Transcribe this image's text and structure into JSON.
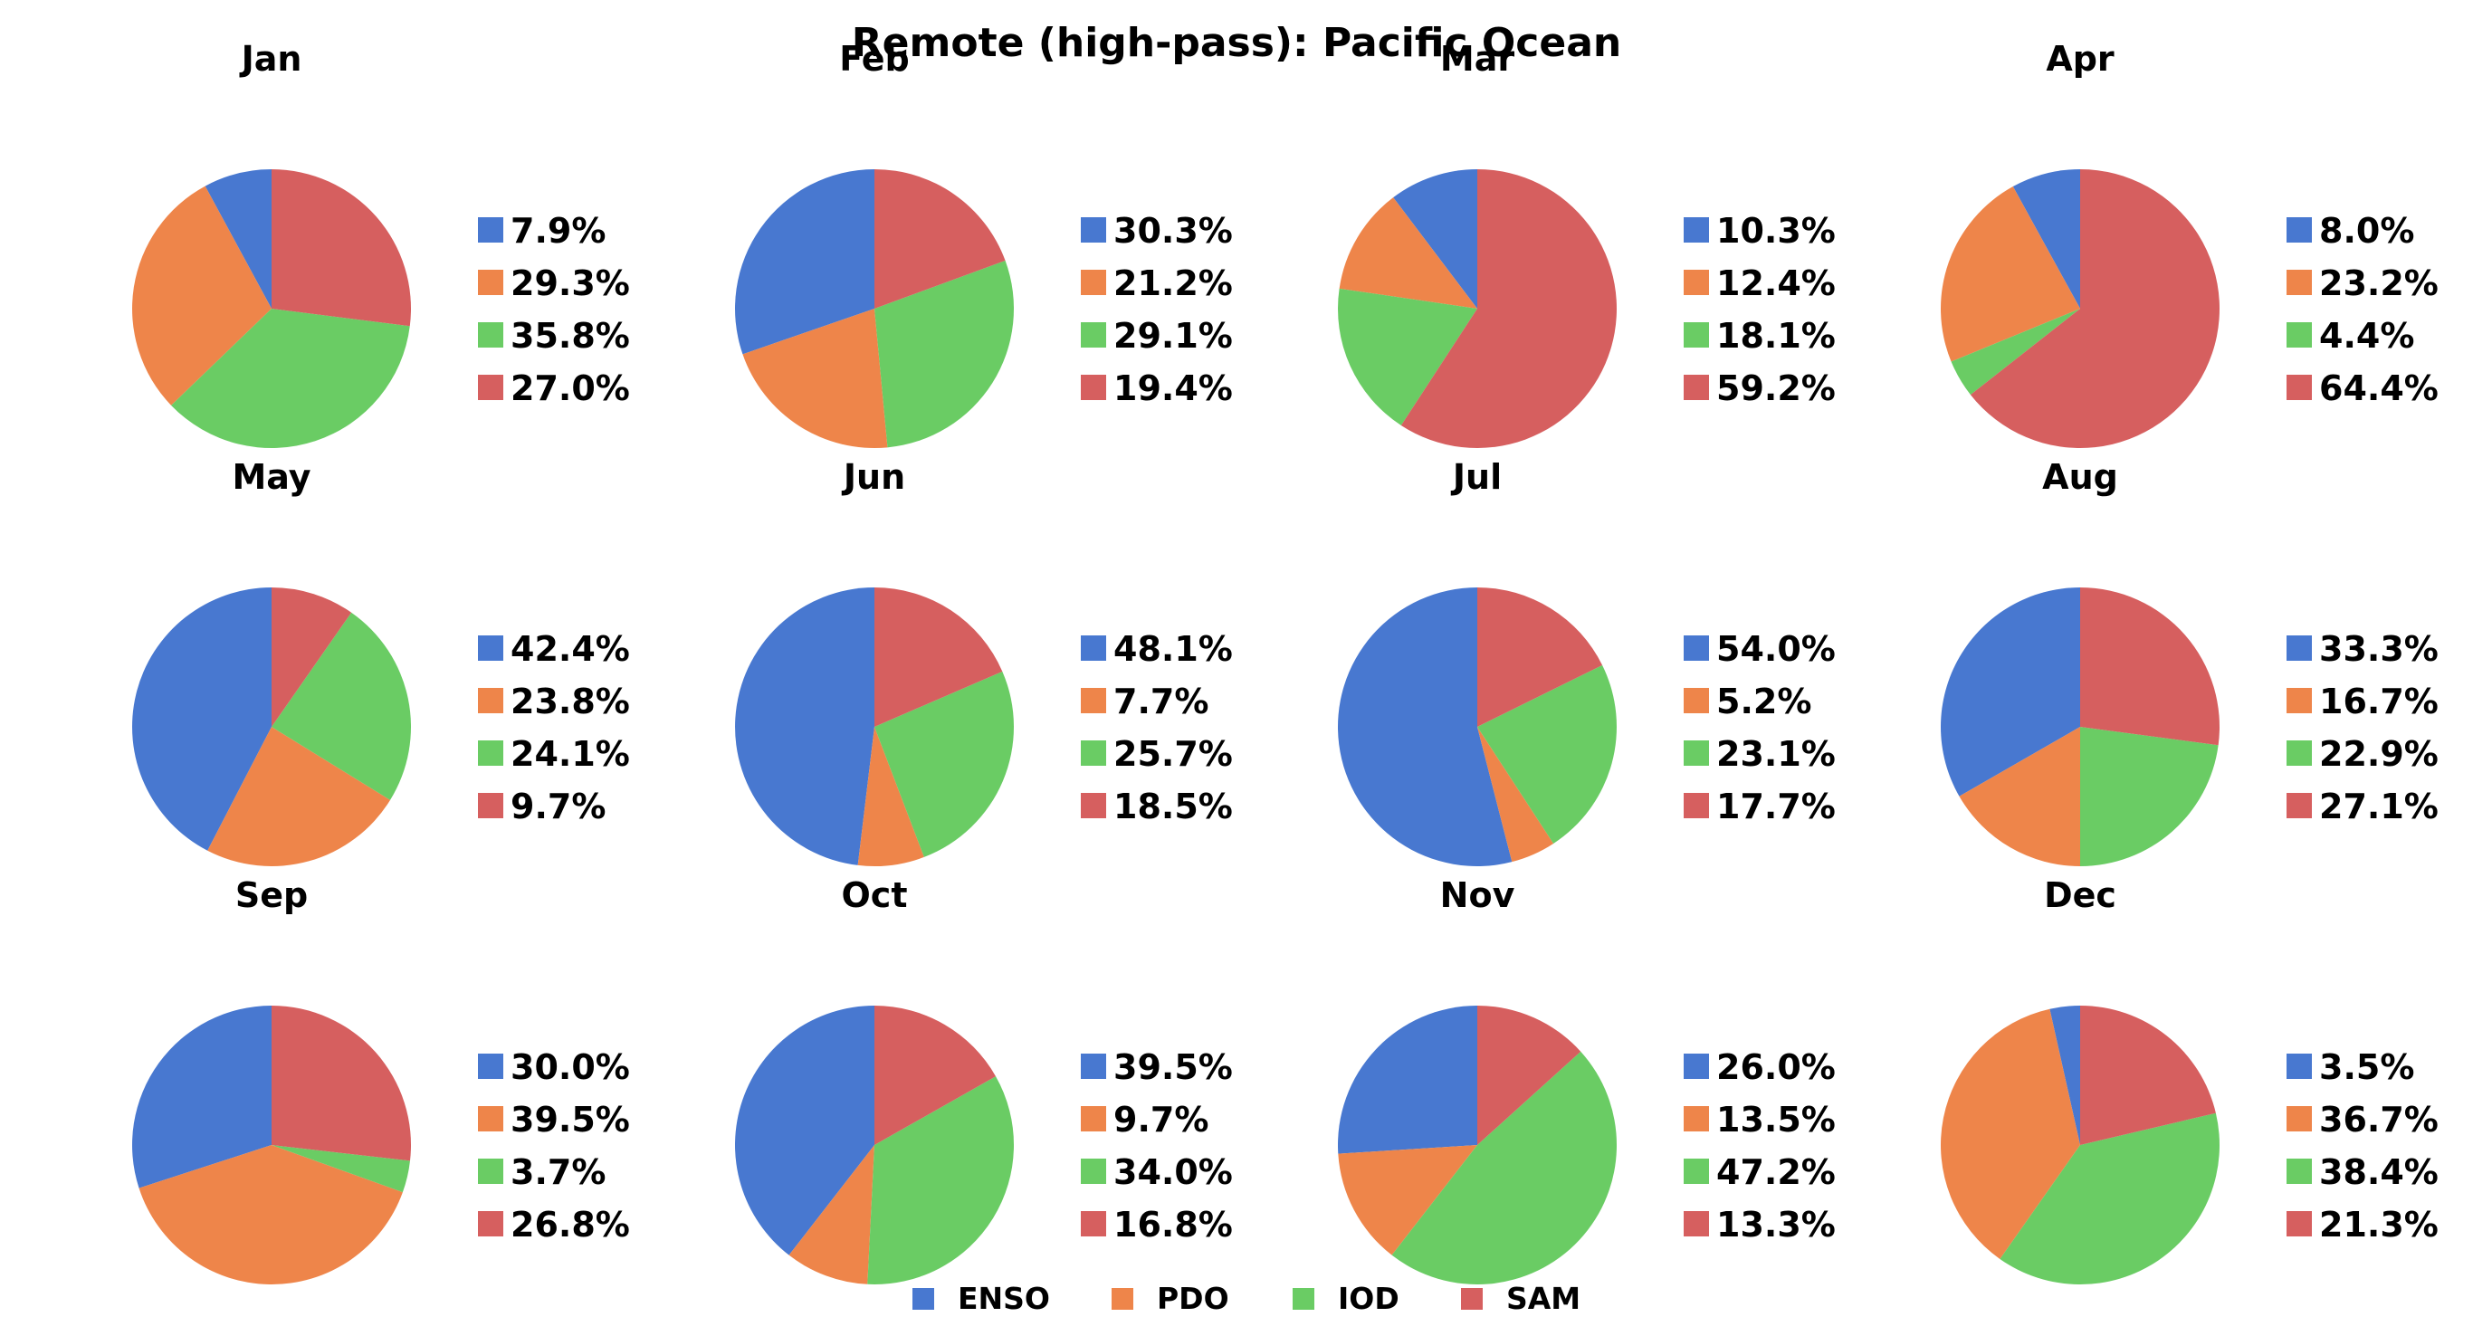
{
  "title": "Remote (high-pass): Pacific Ocean",
  "colors": {
    "ENSO": "#4878d0",
    "PDO": "#ee854a",
    "IOD": "#6acc64",
    "SAM": "#d65f5f"
  },
  "legend": {
    "placement": "bottom-center",
    "items": [
      "ENSO",
      "PDO",
      "IOD",
      "SAM"
    ]
  },
  "chart_data": [
    {
      "type": "pie",
      "title": "Jan",
      "categories": [
        "ENSO",
        "PDO",
        "IOD",
        "SAM"
      ],
      "values": [
        7.9,
        29.3,
        35.8,
        27.0
      ],
      "labels": [
        "7.9%",
        "29.3%",
        "35.8%",
        "27.0%"
      ]
    },
    {
      "type": "pie",
      "title": "Feb",
      "categories": [
        "ENSO",
        "PDO",
        "IOD",
        "SAM"
      ],
      "values": [
        30.3,
        21.2,
        29.1,
        19.4
      ],
      "labels": [
        "30.3%",
        "21.2%",
        "29.1%",
        "19.4%"
      ]
    },
    {
      "type": "pie",
      "title": "Mar",
      "categories": [
        "ENSO",
        "PDO",
        "IOD",
        "SAM"
      ],
      "values": [
        10.3,
        12.4,
        18.1,
        59.2
      ],
      "labels": [
        "10.3%",
        "12.4%",
        "18.1%",
        "59.2%"
      ]
    },
    {
      "type": "pie",
      "title": "Apr",
      "categories": [
        "ENSO",
        "PDO",
        "IOD",
        "SAM"
      ],
      "values": [
        8.0,
        23.2,
        4.4,
        64.4
      ],
      "labels": [
        "8.0%",
        "23.2%",
        "4.4%",
        "64.4%"
      ]
    },
    {
      "type": "pie",
      "title": "May",
      "categories": [
        "ENSO",
        "PDO",
        "IOD",
        "SAM"
      ],
      "values": [
        42.4,
        23.8,
        24.1,
        9.7
      ],
      "labels": [
        "42.4%",
        "23.8%",
        "24.1%",
        "9.7%"
      ]
    },
    {
      "type": "pie",
      "title": "Jun",
      "categories": [
        "ENSO",
        "PDO",
        "IOD",
        "SAM"
      ],
      "values": [
        48.1,
        7.7,
        25.7,
        18.5
      ],
      "labels": [
        "48.1%",
        "7.7%",
        "25.7%",
        "18.5%"
      ]
    },
    {
      "type": "pie",
      "title": "Jul",
      "categories": [
        "ENSO",
        "PDO",
        "IOD",
        "SAM"
      ],
      "values": [
        54.0,
        5.2,
        23.1,
        17.7
      ],
      "labels": [
        "54.0%",
        "5.2%",
        "23.1%",
        "17.7%"
      ]
    },
    {
      "type": "pie",
      "title": "Aug",
      "categories": [
        "ENSO",
        "PDO",
        "IOD",
        "SAM"
      ],
      "values": [
        33.3,
        16.7,
        22.9,
        27.1
      ],
      "labels": [
        "33.3%",
        "16.7%",
        "22.9%",
        "27.1%"
      ]
    },
    {
      "type": "pie",
      "title": "Sep",
      "categories": [
        "ENSO",
        "PDO",
        "IOD",
        "SAM"
      ],
      "values": [
        30.0,
        39.5,
        3.7,
        26.8
      ],
      "labels": [
        "30.0%",
        "39.5%",
        "3.7%",
        "26.8%"
      ]
    },
    {
      "type": "pie",
      "title": "Oct",
      "categories": [
        "ENSO",
        "PDO",
        "IOD",
        "SAM"
      ],
      "values": [
        39.5,
        9.7,
        34.0,
        16.8
      ],
      "labels": [
        "39.5%",
        "9.7%",
        "34.0%",
        "16.8%"
      ]
    },
    {
      "type": "pie",
      "title": "Nov",
      "categories": [
        "ENSO",
        "PDO",
        "IOD",
        "SAM"
      ],
      "values": [
        26.0,
        13.5,
        47.2,
        13.3
      ],
      "labels": [
        "26.0%",
        "13.5%",
        "47.2%",
        "13.3%"
      ]
    },
    {
      "type": "pie",
      "title": "Dec",
      "categories": [
        "ENSO",
        "PDO",
        "IOD",
        "SAM"
      ],
      "values": [
        3.5,
        36.7,
        38.4,
        21.3
      ],
      "labels": [
        "3.5%",
        "36.7%",
        "38.4%",
        "21.3%"
      ]
    }
  ]
}
